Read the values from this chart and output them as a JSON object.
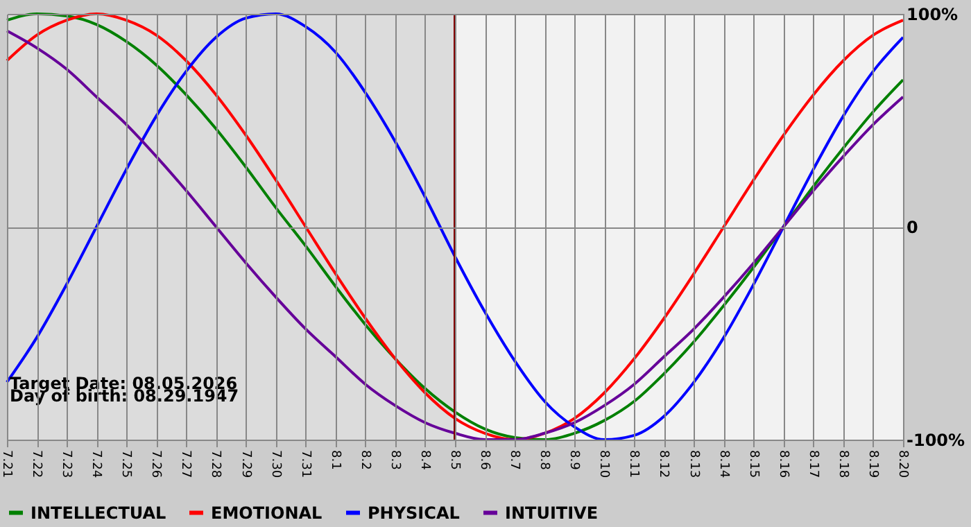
{
  "chart_data": {
    "type": "line",
    "categories": [
      "7.21",
      "7.22",
      "7.23",
      "7.24",
      "7.25",
      "7.26",
      "7.27",
      "7.28",
      "7.29",
      "7.30",
      "7.31",
      "8.1",
      "8.2",
      "8.3",
      "8.4",
      "8.5",
      "8.6",
      "8.7",
      "8.8",
      "8.9",
      "8.10",
      "8.11",
      "8.12",
      "8.13",
      "8.14",
      "8.15",
      "8.16",
      "8.17",
      "8.18",
      "8.19",
      "8.20"
    ],
    "series": [
      {
        "name": "INTELLECTUAL",
        "color": "#008000",
        "values": [
          97,
          100,
          99,
          95,
          87,
          76,
          62,
          46,
          28,
          9,
          -9,
          -28,
          -46,
          -62,
          -76,
          -87,
          -95,
          -99,
          -100,
          -97,
          -91,
          -82,
          -69,
          -54,
          -37,
          -19,
          0,
          19,
          37,
          54,
          69
        ]
      },
      {
        "name": "EMOTIONAL",
        "color": "#ff0000",
        "values": [
          78,
          90,
          97,
          100,
          97,
          90,
          78,
          62,
          43,
          22,
          0,
          -22,
          -43,
          -62,
          -78,
          -90,
          -97,
          -100,
          -97,
          -90,
          -78,
          -62,
          -43,
          -22,
          0,
          22,
          43,
          62,
          78,
          90,
          97
        ]
      },
      {
        "name": "PHYSICAL",
        "color": "#0000ff",
        "values": [
          -73,
          -52,
          -27,
          0,
          27,
          52,
          73,
          89,
          98,
          100,
          94,
          82,
          63,
          40,
          14,
          -14,
          -40,
          -63,
          -82,
          -94,
          -100,
          -98,
          -89,
          -73,
          -52,
          -27,
          0,
          27,
          52,
          73,
          89
        ]
      },
      {
        "name": "INTUITIVE",
        "color": "#660099",
        "values": [
          92,
          84,
          74,
          61,
          48,
          33,
          17,
          0,
          -17,
          -33,
          -48,
          -61,
          -74,
          -84,
          -92,
          -97,
          -100,
          -100,
          -97,
          -92,
          -84,
          -74,
          -61,
          -48,
          -33,
          -17,
          0,
          17,
          33,
          48,
          61
        ]
      }
    ],
    "ylim": [
      -100,
      100
    ],
    "yticks": [
      {
        "value": -100,
        "label": "-100%"
      },
      0,
      {
        "value": 100,
        "label": "100%"
      }
    ],
    "grid": true,
    "legend": "bottom",
    "marker": "none",
    "line_style": "solid",
    "ref_lines": [
      {
        "axis": "x",
        "value": "8.5",
        "color": "#800000"
      }
    ],
    "bands": [
      {
        "axis": "x",
        "from": "7.21",
        "to": "8.5",
        "color": "#dcdcdc"
      }
    ],
    "annotations": [
      "Target Date: 08.05.2026",
      "Day of birth: 08.29.1947"
    ]
  }
}
